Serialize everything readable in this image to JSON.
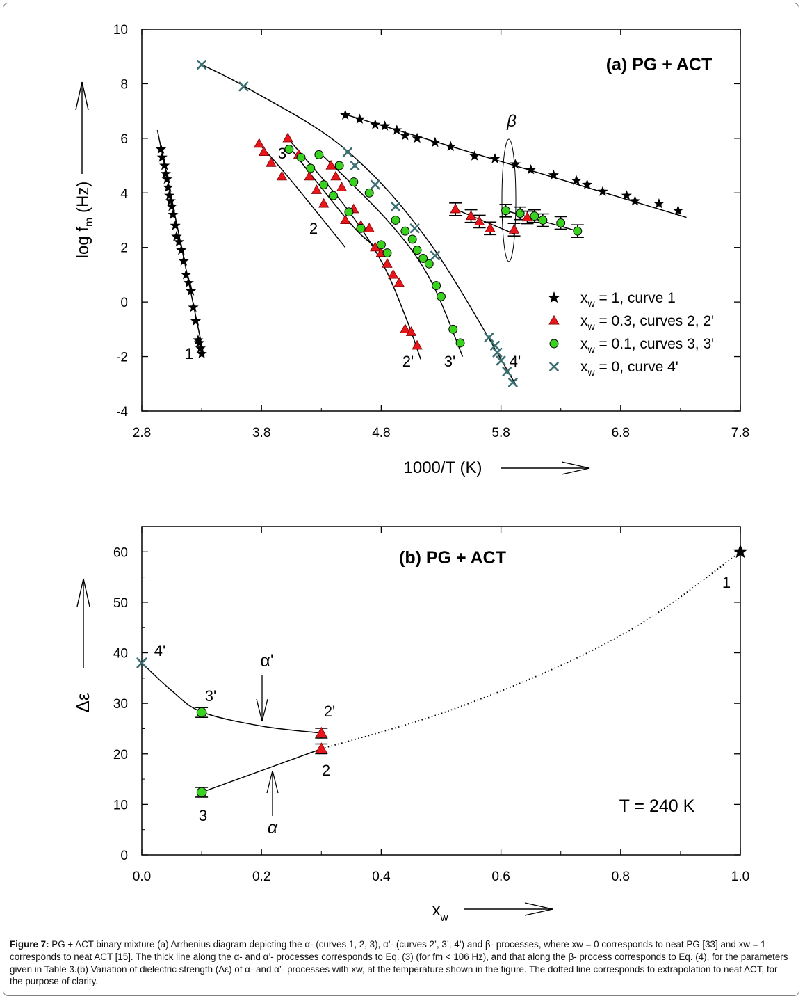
{
  "chart_data": [
    {
      "type": "scatter",
      "title": "(a) PG + ACT",
      "xlabel": "1000/T (K)",
      "ylabel": "log f",
      "ylabel_sub": "m",
      "ylabel_unit": " (Hz)",
      "xlim": [
        2.8,
        7.8
      ],
      "ylim": [
        -4,
        10
      ],
      "xticks": [
        2.8,
        3.8,
        4.8,
        5.8,
        6.8,
        7.8
      ],
      "xtick_labels": [
        "2.8",
        "3.8",
        "4.8",
        "5.8",
        "6.8",
        "7.8"
      ],
      "yticks": [
        -4,
        -2,
        0,
        2,
        4,
        6,
        8,
        10
      ],
      "ytick_labels": [
        "-4",
        "-2",
        "0",
        "2",
        "4",
        "6",
        "8",
        "10"
      ],
      "legend": [
        {
          "marker": "star",
          "label": "x",
          "sub": "w",
          "rest": " = 1, curve 1"
        },
        {
          "marker": "triangle",
          "label": "x",
          "sub": "w",
          "rest": " = 0.3, curves 2, 2'"
        },
        {
          "marker": "circle",
          "label": "x",
          "sub": "w",
          "rest": " = 0.1, curves 3, 3'"
        },
        {
          "marker": "cross",
          "label": "x",
          "sub": "w",
          "rest": " = 0, curve 4'"
        }
      ],
      "curve_labels": [
        "1",
        "2",
        "3",
        "2'",
        "3'",
        "4'"
      ],
      "beta_label": "β",
      "series": [
        {
          "name": "xw = 1, curve 1",
          "marker": "star",
          "x": [
            3.3,
            3.29,
            3.28,
            3.27,
            3.25,
            3.23,
            3.21,
            3.19,
            3.17,
            3.15,
            3.13,
            3.11,
            3.09,
            3.08,
            3.06,
            3.05,
            3.04,
            3.03,
            3.02,
            3.01,
            3.0,
            2.99,
            2.97,
            2.96
          ],
          "y": [
            -1.9,
            -1.7,
            -1.5,
            -1.4,
            -0.7,
            -0.2,
            0.4,
            0.7,
            1.0,
            1.5,
            1.9,
            2.2,
            2.4,
            2.8,
            3.2,
            3.5,
            3.7,
            3.9,
            4.2,
            4.5,
            4.7,
            5.0,
            5.3,
            5.6
          ]
        },
        {
          "name": "xw = 1, beta",
          "marker": "star",
          "x": [
            4.5,
            4.62,
            4.75,
            4.83,
            4.93,
            5.0,
            5.1,
            5.25,
            5.38,
            5.58,
            5.75,
            5.92,
            6.05,
            6.24,
            6.43,
            6.52,
            6.65,
            6.85,
            6.92,
            7.12,
            7.28
          ],
          "y": [
            6.85,
            6.7,
            6.5,
            6.45,
            6.3,
            6.1,
            6.0,
            5.85,
            5.7,
            5.35,
            5.25,
            5.05,
            4.85,
            4.65,
            4.45,
            4.3,
            4.05,
            3.9,
            3.7,
            3.6,
            3.35
          ]
        },
        {
          "name": "xw = 0.3, curves 2, 2'",
          "marker": "triangle",
          "x": [
            3.78,
            3.82,
            3.88,
            3.97,
            4.02,
            4.11,
            4.2,
            4.26,
            4.32,
            4.38,
            4.42,
            4.47,
            4.5,
            4.57,
            4.63,
            4.7,
            4.75,
            4.8,
            4.85,
            4.9,
            4.95,
            5.0,
            5.05,
            5.1
          ],
          "y": [
            5.8,
            5.5,
            5.1,
            4.6,
            6.0,
            5.4,
            4.6,
            4.1,
            3.6,
            5.0,
            4.6,
            4.2,
            3.0,
            3.4,
            2.8,
            2.7,
            2.0,
            1.8,
            1.4,
            1.0,
            0.7,
            -1.0,
            -1.1,
            -1.6
          ]
        },
        {
          "name": "xw = 0.1, curves 3, 3'",
          "marker": "circle",
          "x": [
            4.03,
            4.13,
            4.21,
            4.28,
            4.32,
            4.4,
            4.45,
            4.53,
            4.57,
            4.63,
            4.7,
            4.8,
            4.85,
            4.92,
            5.0,
            5.06,
            5.1,
            5.15,
            5.2,
            5.26,
            5.3,
            5.4,
            5.46
          ],
          "y": [
            5.6,
            5.3,
            4.9,
            5.4,
            4.3,
            3.9,
            5.0,
            3.3,
            4.4,
            2.7,
            4.0,
            2.1,
            1.8,
            3.0,
            2.6,
            2.3,
            1.9,
            1.6,
            1.4,
            0.6,
            0.2,
            -1.0,
            -1.5
          ]
        },
        {
          "name": "xw = 0, curve 4'",
          "marker": "cross",
          "x": [
            3.3,
            3.65,
            4.52,
            4.58,
            4.75,
            4.92,
            5.08,
            5.25,
            5.7,
            5.75,
            5.77,
            5.8,
            5.85,
            5.9
          ],
          "y": [
            8.7,
            7.9,
            5.5,
            5.0,
            4.3,
            3.5,
            2.7,
            1.7,
            -1.3,
            -1.6,
            -1.85,
            -2.15,
            -2.55,
            -2.95
          ]
        },
        {
          "name": "beta with error bars",
          "marker": "mixed",
          "x": [
            5.42,
            5.55,
            5.62,
            5.71,
            5.84,
            5.91,
            5.96,
            6.02,
            6.08,
            6.15,
            6.3,
            6.44
          ],
          "y": [
            3.4,
            3.15,
            2.95,
            2.7,
            3.35,
            2.65,
            3.25,
            3.1,
            3.15,
            3.0,
            2.9,
            2.6
          ],
          "markers": [
            "triangle",
            "triangle",
            "triangle",
            "triangle",
            "circle",
            "triangle",
            "circle",
            "triangle",
            "circle",
            "circle",
            "circle",
            "circle"
          ]
        }
      ],
      "lines": [
        {
          "name": "curve 1 fit",
          "x": [
            2.93,
            3.32
          ],
          "y": [
            6.3,
            -2.0
          ]
        },
        {
          "name": "beta fit",
          "x": [
            4.48,
            7.35
          ],
          "y": [
            6.9,
            3.1
          ]
        },
        {
          "name": "curve 2",
          "x": [
            3.78,
            4.02,
            4.5
          ],
          "y": [
            5.8,
            4.6,
            2.0
          ]
        },
        {
          "name": "curve 2'",
          "x": [
            4.02,
            4.5,
            4.8,
            5.0,
            5.13
          ],
          "y": [
            6.0,
            3.5,
            1.5,
            -0.5,
            -2.1
          ]
        },
        {
          "name": "curve 3",
          "x": [
            4.03,
            4.28,
            4.6,
            4.85
          ],
          "y": [
            5.7,
            4.3,
            2.6,
            1.7
          ]
        },
        {
          "name": "curve 3'",
          "x": [
            4.28,
            4.85,
            5.2,
            5.48
          ],
          "y": [
            5.5,
            3.0,
            0.9,
            -2.0
          ]
        },
        {
          "name": "curve 4'",
          "x": [
            3.3,
            3.7,
            4.5,
            5.2,
            5.92
          ],
          "y": [
            8.7,
            7.8,
            5.6,
            2.2,
            -3.0
          ]
        },
        {
          "name": "beta xw 0.3",
          "x": [
            5.42,
            5.91
          ],
          "y": [
            3.4,
            2.5
          ]
        },
        {
          "name": "beta xw 0.1",
          "x": [
            5.84,
            6.44
          ],
          "y": [
            3.35,
            2.6
          ]
        }
      ]
    },
    {
      "type": "scatter",
      "title": "(b) PG + ACT",
      "xlabel": "x",
      "xlabel_sub": "w",
      "ylabel": "Δε",
      "xlim": [
        0.0,
        1.0
      ],
      "ylim": [
        0,
        65
      ],
      "xticks": [
        0.0,
        0.2,
        0.4,
        0.6,
        0.8,
        1.0
      ],
      "xtick_labels": [
        "0.0",
        "0.2",
        "0.4",
        "0.6",
        "0.8",
        "1.0"
      ],
      "yticks": [
        0,
        10,
        20,
        30,
        40,
        50,
        60
      ],
      "ytick_labels": [
        "0",
        "10",
        "20",
        "30",
        "40",
        "50",
        "60"
      ],
      "annotation": "T = 240 K",
      "alpha_prime_label": "α'",
      "alpha_label": "α",
      "point_labels": [
        "1",
        "2",
        "2'",
        "3",
        "3'",
        "4'"
      ],
      "series": [
        {
          "name": "α' process",
          "marker": "mixed",
          "x": [
            0.0,
            0.1,
            0.3
          ],
          "y": [
            38,
            28.2,
            24.1
          ],
          "markers": [
            "cross",
            "circle",
            "triangle"
          ]
        },
        {
          "name": "α process",
          "marker": "mixed",
          "x": [
            0.1,
            0.3,
            1.0
          ],
          "y": [
            12.4,
            21,
            60
          ],
          "markers": [
            "circle",
            "triangle",
            "star"
          ]
        }
      ],
      "lines": [
        {
          "name": "α' fit",
          "x": [
            0.0,
            0.05,
            0.1,
            0.2,
            0.3
          ],
          "y": [
            38,
            32.5,
            28.3,
            25.5,
            24.1
          ]
        },
        {
          "name": "α fit",
          "x": [
            0.1,
            0.3
          ],
          "y": [
            12.4,
            21
          ]
        },
        {
          "name": "extrapolation dotted",
          "x": [
            0.3,
            0.5,
            0.7,
            0.85,
            1.0
          ],
          "y": [
            21,
            28,
            37.5,
            47,
            60
          ]
        }
      ]
    }
  ],
  "caption": {
    "label": "Figure 7:",
    "text": " PG + ACT binary mixture (a) Arrhenius diagram depicting the α- (curves 1, 2, 3), α’- (curves 2’, 3’, 4’) and β- processes, where xw = 0 corresponds to neat PG [33] and xw = 1 corresponds to neat ACT [15]. The thick line along the α- and α’- processes corresponds to Eq. (3) (for fm < 106 Hz), and that along the β- process corresponds to Eq. (4), for the parameters given in Table 3.(b) Variation of dielectric strength (Δε) of α- and α’- processes with xw, at the temperature shown in the figure. The dotted line corresponds to extrapolation to neat ACT, for the purpose of clarity."
  },
  "colors": {
    "triangle": "#e8161b",
    "circle": "#39d21f",
    "cross": "#3b6f72",
    "star": "#000000"
  }
}
